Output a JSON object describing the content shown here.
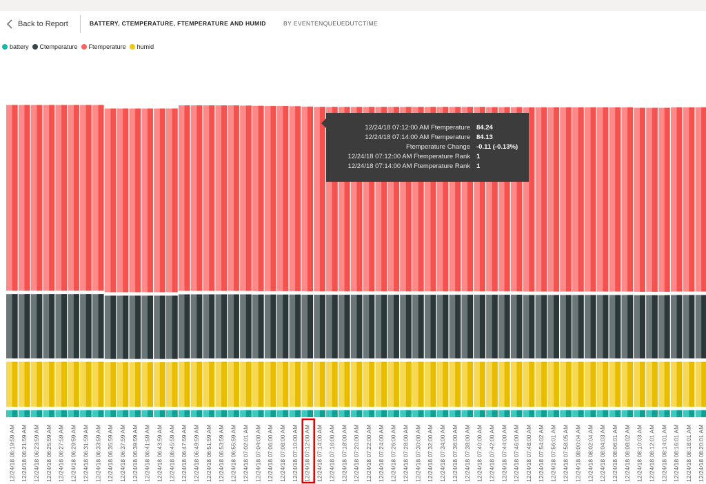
{
  "header": {
    "back_label": "Back to Report",
    "title": "BATTERY, CTEMPERATURE, FTEMPERATURE AND HUMID",
    "subtitle": "BY EVENTENQUEUEDUTCTIME"
  },
  "legend": [
    {
      "name": "battery",
      "color": "#1ab8ac"
    },
    {
      "name": "Ctemperature",
      "color": "#374649"
    },
    {
      "name": "Ftemperature",
      "color": "#fd625e"
    },
    {
      "name": "humid",
      "color": "#f2c80f"
    }
  ],
  "tooltip": {
    "rows": [
      {
        "label": "12/24/18 07:12:00 AM Ftemperature",
        "value": "84.24"
      },
      {
        "label": "12/24/18 07:14:00 AM Ftemperature",
        "value": "84.13"
      },
      {
        "label": "Ftemperature Change",
        "value": "-0.11 (-0.13%)"
      },
      {
        "label": "12/24/18 07:12:00 AM Ftemperature Rank",
        "value": "1"
      },
      {
        "label": "12/24/18 07:14:00 AM Ftemperature Rank",
        "value": "1"
      }
    ]
  },
  "chart_data": {
    "type": "bar",
    "stacked": true,
    "title": "BATTERY, CTEMPERATURE, FTEMPERATURE AND HUMID",
    "subtitle": "BY EVENTENQUEUEDUTCTIME",
    "highlighted_category": "12/24/18 07:12:00 AM",
    "categories": [
      "12/24/18 06:19:59 AM",
      "12/24/18 06:21:59 AM",
      "12/24/18 06:23:59 AM",
      "12/24/18 06:25:59 AM",
      "12/24/18 06:27:59 AM",
      "12/24/18 06:29:59 AM",
      "12/24/18 06:31:59 AM",
      "12/24/18 06:33:59 AM",
      "12/24/18 06:35:59 AM",
      "12/24/18 06:37:59 AM",
      "12/24/18 06:39:59 AM",
      "12/24/18 06:41:59 AM",
      "12/24/18 06:43:59 AM",
      "12/24/18 06:45:59 AM",
      "12/24/18 06:47:59 AM",
      "12/24/18 06:49:59 AM",
      "12/24/18 06:51:59 AM",
      "12/24/18 06:53:59 AM",
      "12/24/18 06:55:59 AM",
      "12/24/18 07:02:01 AM",
      "12/24/18 07:04:00 AM",
      "12/24/18 07:06:00 AM",
      "12/24/18 07:08:00 AM",
      "12/24/18 07:10:00 AM",
      "12/24/18 07:12:00 AM",
      "12/24/18 07:14:00 AM",
      "12/24/18 07:16:00 AM",
      "12/24/18 07:18:00 AM",
      "12/24/18 07:20:00 AM",
      "12/24/18 07:22:00 AM",
      "12/24/18 07:24:00 AM",
      "12/24/18 07:26:00 AM",
      "12/24/18 07:28:00 AM",
      "12/24/18 07:30:00 AM",
      "12/24/18 07:32:00 AM",
      "12/24/18 07:34:00 AM",
      "12/24/18 07:36:00 AM",
      "12/24/18 07:38:00 AM",
      "12/24/18 07:40:00 AM",
      "12/24/18 07:42:00 AM",
      "12/24/18 07:44:00 AM",
      "12/24/18 07:46:00 AM",
      "12/24/18 07:48:00 AM",
      "12/24/18 07:54:02 AM",
      "12/24/18 07:56:01 AM",
      "12/24/18 07:58:05 AM",
      "12/24/18 08:00:04 AM",
      "12/24/18 08:02:04 AM",
      "12/24/18 08:04:03 AM",
      "12/24/18 08:06:01 AM",
      "12/24/18 08:08:02 AM",
      "12/24/18 08:10:03 AM",
      "12/24/18 08:12:01 AM",
      "12/24/18 08:14:01 AM",
      "12/24/18 08:16:01 AM",
      "12/24/18 08:18:01 AM",
      "12/24/18 08:20:01 AM"
    ],
    "series": [
      {
        "name": "battery",
        "color": "#1ab8ac",
        "values": [
          3.2,
          3.2,
          3.2,
          3.2,
          3.2,
          3.2,
          3.2,
          3.2,
          3.2,
          3.2,
          3.2,
          3.2,
          3.2,
          3.2,
          3.2,
          3.2,
          3.2,
          3.2,
          3.2,
          3.2,
          3.2,
          3.2,
          3.2,
          3.2,
          3.2,
          3.2,
          3.2,
          3.2,
          3.2,
          3.2,
          3.2,
          3.2,
          3.2,
          3.2,
          3.2,
          3.2,
          3.2,
          3.2,
          3.2,
          3.2,
          3.2,
          3.2,
          3.2,
          3.2,
          3.2,
          3.2,
          3.2,
          3.2,
          3.2,
          3.2,
          3.2,
          3.2,
          3.2,
          3.2,
          3.2,
          3.2,
          3.2
        ]
      },
      {
        "name": "humid",
        "color": "#f2c80f",
        "values": [
          20.5,
          20.5,
          20.5,
          20.5,
          20.5,
          20.5,
          20.5,
          20.5,
          20.3,
          20.3,
          20.3,
          20.3,
          20.3,
          20.3,
          20.5,
          20.5,
          20.5,
          20.5,
          20.5,
          20.5,
          20.5,
          20.5,
          20.5,
          20.5,
          20.5,
          20.5,
          20.5,
          20.5,
          20.5,
          20.5,
          20.5,
          20.5,
          20.5,
          20.5,
          20.5,
          20.5,
          20.5,
          20.5,
          20.5,
          20.5,
          20.5,
          20.5,
          20.5,
          20.5,
          20.5,
          20.5,
          20.5,
          20.5,
          20.5,
          20.5,
          20.5,
          20.5,
          20.5,
          20.5,
          20.5,
          20.5,
          20.5
        ]
      },
      {
        "name": "Ctemperature",
        "color": "#374649",
        "values": [
          29.3,
          29.3,
          29.3,
          29.3,
          29.3,
          29.3,
          29.3,
          29.3,
          28.8,
          28.8,
          28.8,
          28.8,
          28.8,
          28.8,
          29.2,
          29.2,
          29.2,
          29.2,
          29.2,
          29.2,
          29.1,
          29.1,
          29.1,
          29.1,
          29.0,
          29.0,
          29.0,
          29.0,
          29.0,
          29.0,
          29.0,
          29.0,
          29.0,
          29.0,
          29.0,
          29.0,
          29.0,
          29.0,
          29.0,
          29.0,
          29.0,
          29.0,
          28.9,
          28.9,
          28.9,
          28.9,
          28.9,
          28.9,
          28.9,
          28.9,
          28.9,
          28.8,
          28.8,
          28.8,
          28.9,
          28.9,
          28.9
        ]
      },
      {
        "name": "Ftemperature",
        "color": "#fd625e",
        "values": [
          84.7,
          84.7,
          84.7,
          84.7,
          84.7,
          84.7,
          84.7,
          84.7,
          83.8,
          83.8,
          83.8,
          83.8,
          83.8,
          83.8,
          84.6,
          84.6,
          84.6,
          84.6,
          84.6,
          84.5,
          84.5,
          84.4,
          84.4,
          84.3,
          84.24,
          84.13,
          84.1,
          84.1,
          84.1,
          84.1,
          84.1,
          84.1,
          84.1,
          84.1,
          84.1,
          84.1,
          84.1,
          84.1,
          84.1,
          84.0,
          84.0,
          84.0,
          84.0,
          84.0,
          84.0,
          84.0,
          84.0,
          84.0,
          84.0,
          84.0,
          84.0,
          83.9,
          83.9,
          83.9,
          84.0,
          84.0,
          84.0
        ]
      }
    ],
    "legend_position": "top-left",
    "grid": false
  }
}
